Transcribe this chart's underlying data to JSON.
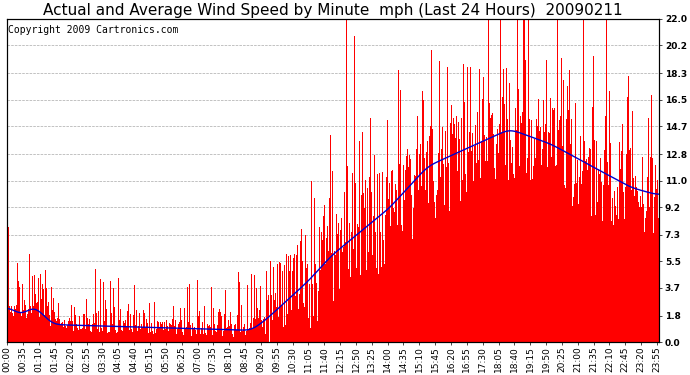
{
  "title": "Actual and Average Wind Speed by Minute  mph (Last 24 Hours)  20090211",
  "copyright": "Copyright 2009 Cartronics.com",
  "ylabel_right": [
    "22.0",
    "20.2",
    "18.3",
    "16.5",
    "14.7",
    "12.8",
    "11.0",
    "9.2",
    "7.3",
    "5.5",
    "3.7",
    "1.8",
    "0.0"
  ],
  "yticks_right": [
    22.0,
    20.2,
    18.3,
    16.5,
    14.7,
    12.8,
    11.0,
    9.2,
    7.3,
    5.5,
    3.7,
    1.8,
    0.0
  ],
  "ylim": [
    0.0,
    22.0
  ],
  "bar_color": "#FF0000",
  "line_color": "#0000CD",
  "bg_color": "#FFFFFF",
  "grid_color": "#AAAAAA",
  "title_fontsize": 11,
  "copyright_fontsize": 7,
  "tick_fontsize": 6.5
}
